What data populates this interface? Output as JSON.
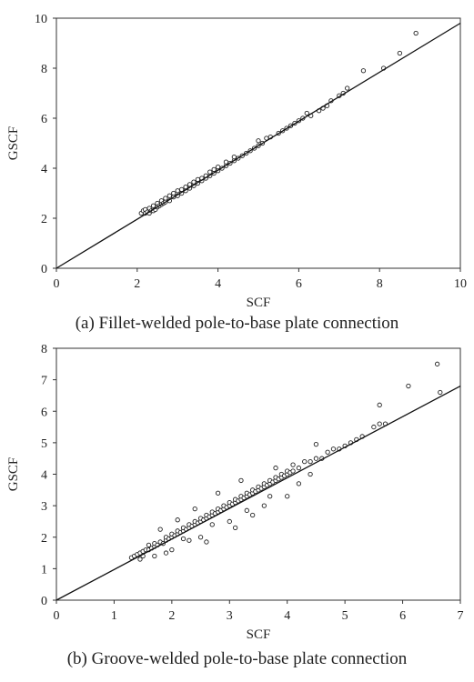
{
  "chart_data": [
    {
      "type": "scatter",
      "caption": "(a) Fillet-welded pole-to-base plate connection",
      "xlabel": "SCF",
      "ylabel": "GSCF",
      "xlim": [
        0,
        10
      ],
      "ylim": [
        0,
        10
      ],
      "xticks": [
        "0",
        "2",
        "4",
        "6",
        "8",
        "10"
      ],
      "yticks": [
        "0",
        "2",
        "4",
        "6",
        "8",
        "10"
      ],
      "grid": false,
      "legend": "none",
      "fit_line": {
        "x": [
          0,
          10
        ],
        "y": [
          0,
          9.8
        ]
      },
      "points": {
        "x": [
          2.1,
          2.15,
          2.2,
          2.2,
          2.25,
          2.3,
          2.3,
          2.35,
          2.4,
          2.4,
          2.45,
          2.5,
          2.5,
          2.55,
          2.6,
          2.6,
          2.65,
          2.7,
          2.7,
          2.8,
          2.8,
          2.9,
          2.9,
          3.0,
          3.0,
          3.1,
          3.1,
          3.2,
          3.2,
          3.3,
          3.3,
          3.4,
          3.4,
          3.5,
          3.5,
          3.6,
          3.6,
          3.7,
          3.7,
          3.8,
          3.8,
          3.9,
          3.9,
          4.0,
          4.0,
          4.1,
          4.2,
          4.2,
          4.3,
          4.4,
          4.4,
          4.5,
          4.6,
          4.7,
          4.8,
          4.9,
          5.0,
          5.0,
          5.1,
          5.2,
          5.3,
          5.5,
          5.6,
          5.7,
          5.8,
          5.9,
          6.0,
          6.1,
          6.2,
          6.3,
          6.5,
          6.6,
          6.7,
          6.8,
          7.0,
          7.1,
          7.2,
          7.6,
          8.1,
          8.5,
          8.9
        ],
        "y": [
          2.2,
          2.3,
          2.2,
          2.35,
          2.25,
          2.2,
          2.4,
          2.3,
          2.3,
          2.5,
          2.35,
          2.45,
          2.6,
          2.5,
          2.55,
          2.7,
          2.6,
          2.65,
          2.8,
          2.7,
          2.9,
          2.85,
          3.0,
          2.9,
          3.1,
          3.0,
          3.15,
          3.1,
          3.25,
          3.2,
          3.35,
          3.3,
          3.45,
          3.4,
          3.55,
          3.5,
          3.6,
          3.6,
          3.7,
          3.7,
          3.85,
          3.8,
          3.95,
          3.9,
          4.05,
          4.0,
          4.1,
          4.25,
          4.2,
          4.3,
          4.45,
          4.4,
          4.5,
          4.6,
          4.7,
          4.8,
          4.9,
          5.1,
          5.0,
          5.2,
          5.25,
          5.4,
          5.5,
          5.6,
          5.7,
          5.8,
          5.9,
          6.0,
          6.2,
          6.1,
          6.3,
          6.4,
          6.5,
          6.7,
          6.9,
          7.0,
          7.2,
          7.9,
          8.0,
          8.6,
          9.4
        ]
      }
    },
    {
      "type": "scatter",
      "caption": "(b) Groove-welded pole-to-base plate connection",
      "xlabel": "SCF",
      "ylabel": "GSCF",
      "xlim": [
        0,
        7
      ],
      "ylim": [
        0,
        8
      ],
      "xticks": [
        "0",
        "1",
        "2",
        "3",
        "4",
        "5",
        "6",
        "7"
      ],
      "yticks": [
        "0",
        "1",
        "2",
        "3",
        "4",
        "5",
        "6",
        "7",
        "8"
      ],
      "grid": false,
      "legend": "none",
      "fit_line": {
        "x": [
          0,
          7
        ],
        "y": [
          0,
          6.8
        ]
      },
      "points": {
        "x": [
          1.3,
          1.35,
          1.4,
          1.45,
          1.5,
          1.5,
          1.55,
          1.6,
          1.65,
          1.7,
          1.7,
          1.75,
          1.8,
          1.85,
          1.9,
          1.9,
          1.95,
          2.0,
          2.0,
          2.05,
          2.1,
          2.1,
          2.15,
          2.2,
          2.2,
          2.25,
          2.3,
          2.3,
          2.35,
          2.4,
          2.4,
          2.45,
          2.5,
          2.5,
          2.55,
          2.6,
          2.6,
          2.65,
          2.7,
          2.7,
          2.75,
          2.8,
          2.8,
          2.85,
          2.9,
          2.9,
          2.95,
          3.0,
          3.0,
          3.05,
          3.1,
          3.1,
          3.15,
          3.2,
          3.2,
          3.25,
          3.3,
          3.3,
          3.35,
          3.4,
          3.4,
          3.45,
          3.5,
          3.5,
          3.55,
          3.6,
          3.6,
          3.65,
          3.7,
          3.7,
          3.75,
          3.8,
          3.8,
          3.85,
          3.9,
          3.9,
          3.95,
          4.0,
          4.0,
          4.05,
          4.1,
          4.1,
          4.2,
          4.3,
          4.4,
          4.5,
          4.5,
          4.6,
          4.7,
          4.8,
          4.9,
          5.0,
          5.1,
          5.2,
          5.3,
          5.5,
          5.6,
          5.6,
          5.7,
          6.1,
          6.6,
          6.65,
          1.7,
          1.9,
          2.0,
          2.3,
          2.6,
          3.1,
          3.4,
          3.6,
          4.0,
          2.4,
          2.1,
          1.8,
          2.8,
          3.2,
          3.8,
          4.2,
          4.4,
          2.2,
          2.7,
          3.0,
          1.6,
          1.45,
          2.5,
          3.3,
          3.7
        ],
        "y": [
          1.35,
          1.4,
          1.45,
          1.5,
          1.4,
          1.55,
          1.6,
          1.6,
          1.65,
          1.7,
          1.8,
          1.75,
          1.85,
          1.8,
          1.9,
          2.0,
          1.95,
          2.0,
          2.1,
          2.05,
          2.1,
          2.2,
          2.15,
          2.2,
          2.3,
          2.25,
          2.3,
          2.4,
          2.35,
          2.4,
          2.5,
          2.45,
          2.5,
          2.6,
          2.55,
          2.6,
          2.7,
          2.65,
          2.7,
          2.8,
          2.75,
          2.8,
          2.9,
          2.85,
          2.9,
          3.0,
          2.95,
          3.0,
          3.1,
          3.05,
          3.1,
          3.2,
          3.15,
          3.2,
          3.3,
          3.25,
          3.3,
          3.4,
          3.35,
          3.4,
          3.5,
          3.45,
          3.5,
          3.6,
          3.55,
          3.6,
          3.7,
          3.65,
          3.7,
          3.8,
          3.75,
          3.8,
          3.9,
          3.85,
          3.9,
          4.0,
          3.95,
          4.0,
          4.1,
          4.05,
          4.1,
          4.3,
          4.2,
          4.4,
          4.4,
          4.5,
          4.95,
          4.5,
          4.7,
          4.8,
          4.8,
          4.9,
          5.0,
          5.1,
          5.2,
          5.5,
          5.6,
          6.2,
          5.6,
          6.8,
          7.5,
          6.6,
          1.4,
          1.5,
          1.6,
          1.9,
          1.85,
          2.3,
          2.7,
          3.0,
          3.3,
          2.9,
          2.55,
          2.25,
          3.4,
          3.8,
          4.2,
          3.7,
          4.0,
          1.95,
          2.4,
          2.5,
          1.75,
          1.3,
          2.0,
          2.85,
          3.3
        ]
      }
    }
  ]
}
